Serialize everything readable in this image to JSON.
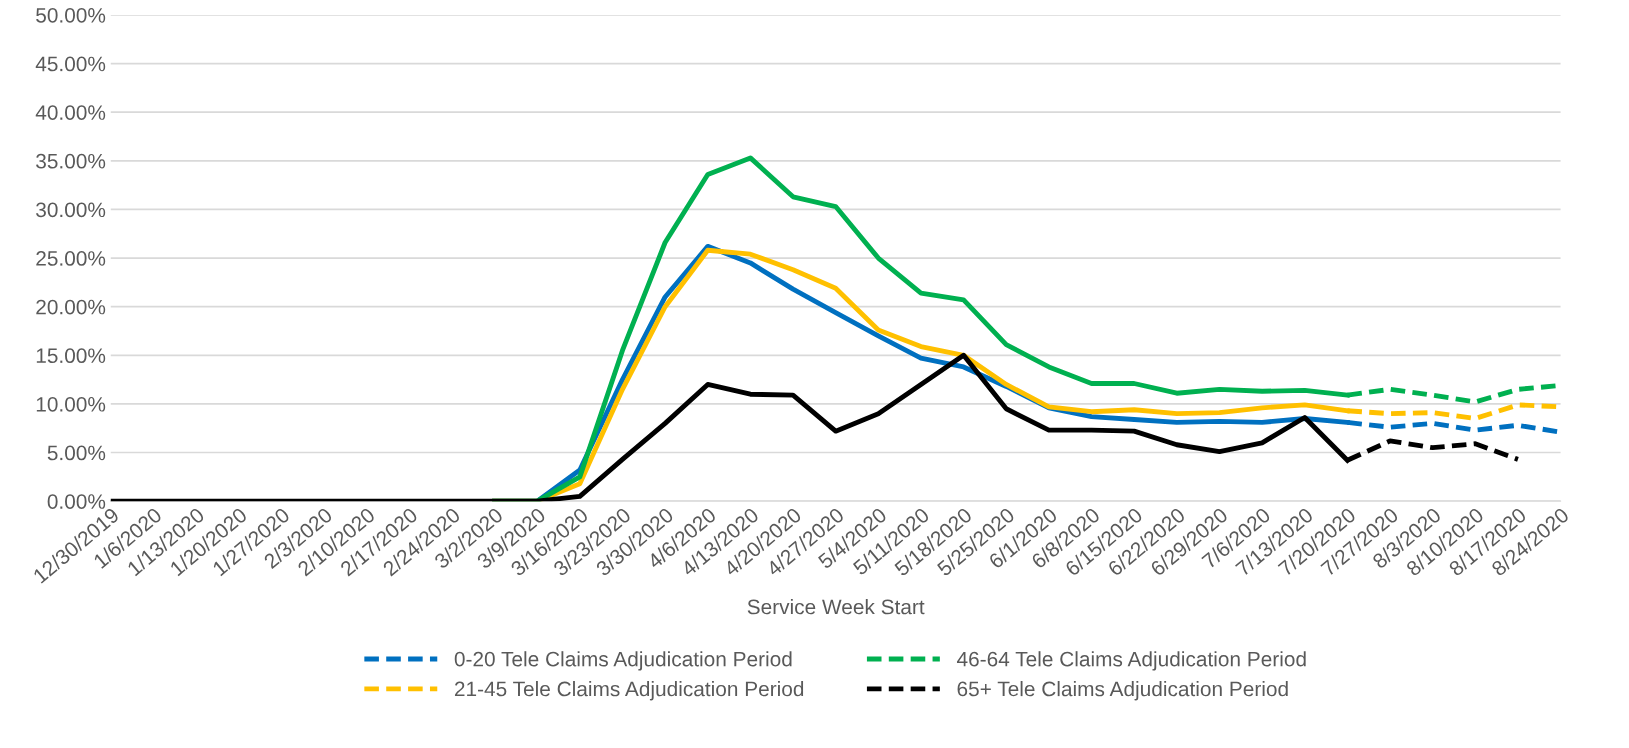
{
  "chart_data": {
    "type": "line",
    "xlabel": "Service Week Start",
    "categories": [
      "12/30/2019",
      "1/6/2020",
      "1/13/2020",
      "1/20/2020",
      "1/27/2020",
      "2/3/2020",
      "2/10/2020",
      "2/17/2020",
      "2/24/2020",
      "3/2/2020",
      "3/9/2020",
      "3/16/2020",
      "3/23/2020",
      "3/30/2020",
      "4/6/2020",
      "4/13/2020",
      "4/20/2020",
      "4/27/2020",
      "5/4/2020",
      "5/11/2020",
      "5/18/2020",
      "5/25/2020",
      "6/1/2020",
      "6/8/2020",
      "6/15/2020",
      "6/22/2020",
      "6/29/2020",
      "7/6/2020",
      "7/13/2020",
      "7/20/2020",
      "7/27/2020",
      "8/3/2020",
      "8/10/2020",
      "8/17/2020",
      "8/24/2020"
    ],
    "ylim": [
      0,
      50
    ],
    "yticks": [
      {
        "value": 0,
        "label": "0.00%"
      },
      {
        "value": 5,
        "label": "5.00%"
      },
      {
        "value": 10,
        "label": "10.00%"
      },
      {
        "value": 15,
        "label": "15.00%"
      },
      {
        "value": 20,
        "label": "20.00%"
      },
      {
        "value": 25,
        "label": "25.00%"
      },
      {
        "value": 30,
        "label": "30.00%"
      },
      {
        "value": 35,
        "label": "35.00%"
      },
      {
        "value": 40,
        "label": "40.00%"
      },
      {
        "value": 45,
        "label": "45.00%"
      },
      {
        "value": 50,
        "label": "50.00%"
      }
    ],
    "grid": "y",
    "legend": "bottom",
    "marker": "none",
    "series": [
      {
        "color": "#0070c0",
        "line_style": "solid",
        "values": [
          null,
          null,
          null,
          null,
          null,
          null,
          null,
          null,
          null,
          0,
          0,
          3.2,
          12.5,
          21,
          26.2,
          24.5,
          21.8,
          19.4,
          17,
          14.7,
          13.8,
          11.8,
          9.6,
          8.7,
          8.4,
          8.1,
          8.2,
          8.1,
          8.5,
          8.1,
          null,
          null,
          null,
          null,
          null
        ]
      },
      {
        "color": "#ffc000",
        "line_style": "solid",
        "values": [
          null,
          null,
          null,
          null,
          null,
          null,
          null,
          null,
          null,
          0,
          0,
          1.8,
          11.5,
          20,
          25.8,
          25.4,
          23.8,
          21.9,
          17.6,
          15.9,
          15,
          12,
          9.7,
          9.2,
          9.4,
          9,
          9.1,
          9.6,
          9.9,
          9.3,
          null,
          null,
          null,
          null,
          null
        ]
      },
      {
        "color": "#00b050",
        "line_style": "solid",
        "values": [
          null,
          null,
          null,
          null,
          null,
          null,
          null,
          null,
          null,
          0,
          0,
          2.5,
          15.5,
          26.6,
          33.6,
          35.3,
          31.3,
          30.3,
          25,
          21.4,
          20.7,
          16.1,
          13.8,
          12.1,
          12.1,
          11.1,
          11.5,
          11.3,
          11.4,
          10.9,
          null,
          null,
          null,
          null,
          null
        ]
      },
      {
        "color": "#000000",
        "line_style": "solid",
        "values": [
          0,
          0,
          0,
          0,
          0,
          0,
          0,
          0,
          0,
          0,
          0,
          0.5,
          4.3,
          8,
          12,
          11,
          10.9,
          7.2,
          9,
          12,
          15,
          9.5,
          7.3,
          7.3,
          7.2,
          5.8,
          5.1,
          6,
          8.6,
          4.2,
          null,
          null,
          null,
          null,
          null
        ]
      },
      {
        "name": "0-20 Tele Claims Adjudication Period",
        "color": "#0070c0",
        "line_style": "dashed",
        "values": [
          null,
          null,
          null,
          null,
          null,
          null,
          null,
          null,
          null,
          null,
          null,
          null,
          null,
          null,
          null,
          null,
          null,
          null,
          null,
          null,
          null,
          null,
          null,
          null,
          null,
          null,
          null,
          null,
          null,
          8.1,
          7.6,
          8,
          7.3,
          7.8,
          7.1
        ]
      },
      {
        "name": "21-45 Tele Claims Adjudication Period",
        "color": "#ffc000",
        "line_style": "dashed",
        "values": [
          null,
          null,
          null,
          null,
          null,
          null,
          null,
          null,
          null,
          null,
          null,
          null,
          null,
          null,
          null,
          null,
          null,
          null,
          null,
          null,
          null,
          null,
          null,
          null,
          null,
          null,
          null,
          null,
          null,
          9.3,
          9,
          9.1,
          8.5,
          9.9,
          9.7
        ]
      },
      {
        "name": "46-64 Tele Claims Adjudication Period",
        "color": "#00b050",
        "line_style": "dashed",
        "values": [
          null,
          null,
          null,
          null,
          null,
          null,
          null,
          null,
          null,
          null,
          null,
          null,
          null,
          null,
          null,
          null,
          null,
          null,
          null,
          null,
          null,
          null,
          null,
          null,
          null,
          null,
          null,
          null,
          null,
          10.9,
          11.5,
          10.9,
          10.2,
          11.5,
          11.9
        ]
      },
      {
        "name": "65+ Tele Claims Adjudication Period",
        "color": "#000000",
        "line_style": "dashed",
        "values": [
          null,
          null,
          null,
          null,
          null,
          null,
          null,
          null,
          null,
          null,
          null,
          null,
          null,
          null,
          null,
          null,
          null,
          null,
          null,
          null,
          null,
          null,
          null,
          null,
          null,
          null,
          null,
          null,
          null,
          4.2,
          6.2,
          5.5,
          5.9,
          4.3,
          null
        ]
      }
    ]
  }
}
